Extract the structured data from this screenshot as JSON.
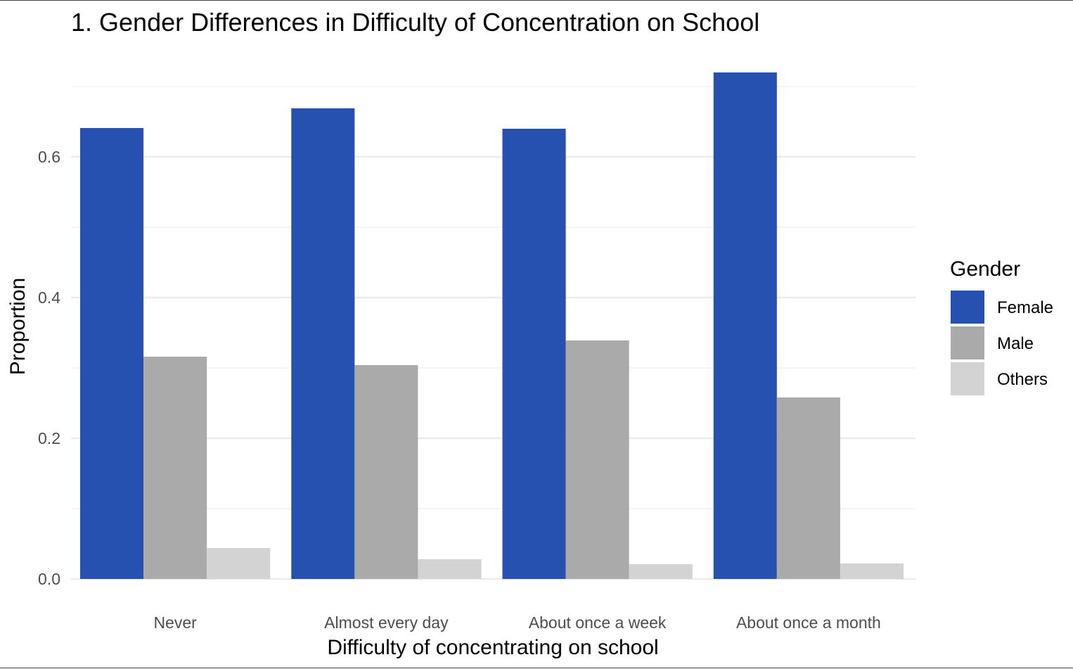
{
  "chart_data": {
    "type": "bar",
    "title": "1. Gender Differences in Difficulty of Concentration on School",
    "xlabel": "Difficulty of concentrating on school",
    "ylabel": "Proportion",
    "categories": [
      "Never",
      "Almost every day",
      "About once a week",
      "About once a month"
    ],
    "series": [
      {
        "name": "Female",
        "color": "#2651b0",
        "values": [
          0.641,
          0.669,
          0.64,
          0.72
        ]
      },
      {
        "name": "Male",
        "color": "#aaaaaa",
        "values": [
          0.316,
          0.304,
          0.339,
          0.258
        ]
      },
      {
        "name": "Others",
        "color": "#d3d3d3",
        "values": [
          0.044,
          0.028,
          0.021,
          0.022
        ]
      }
    ],
    "ylim": [
      0,
      0.7
    ],
    "yticks": [
      0.0,
      0.2,
      0.4,
      0.6
    ],
    "ytick_labels": [
      "0.0",
      "0.2",
      "0.4",
      "0.6"
    ],
    "grid": true,
    "legend": {
      "title": "Gender",
      "position": "right"
    }
  }
}
